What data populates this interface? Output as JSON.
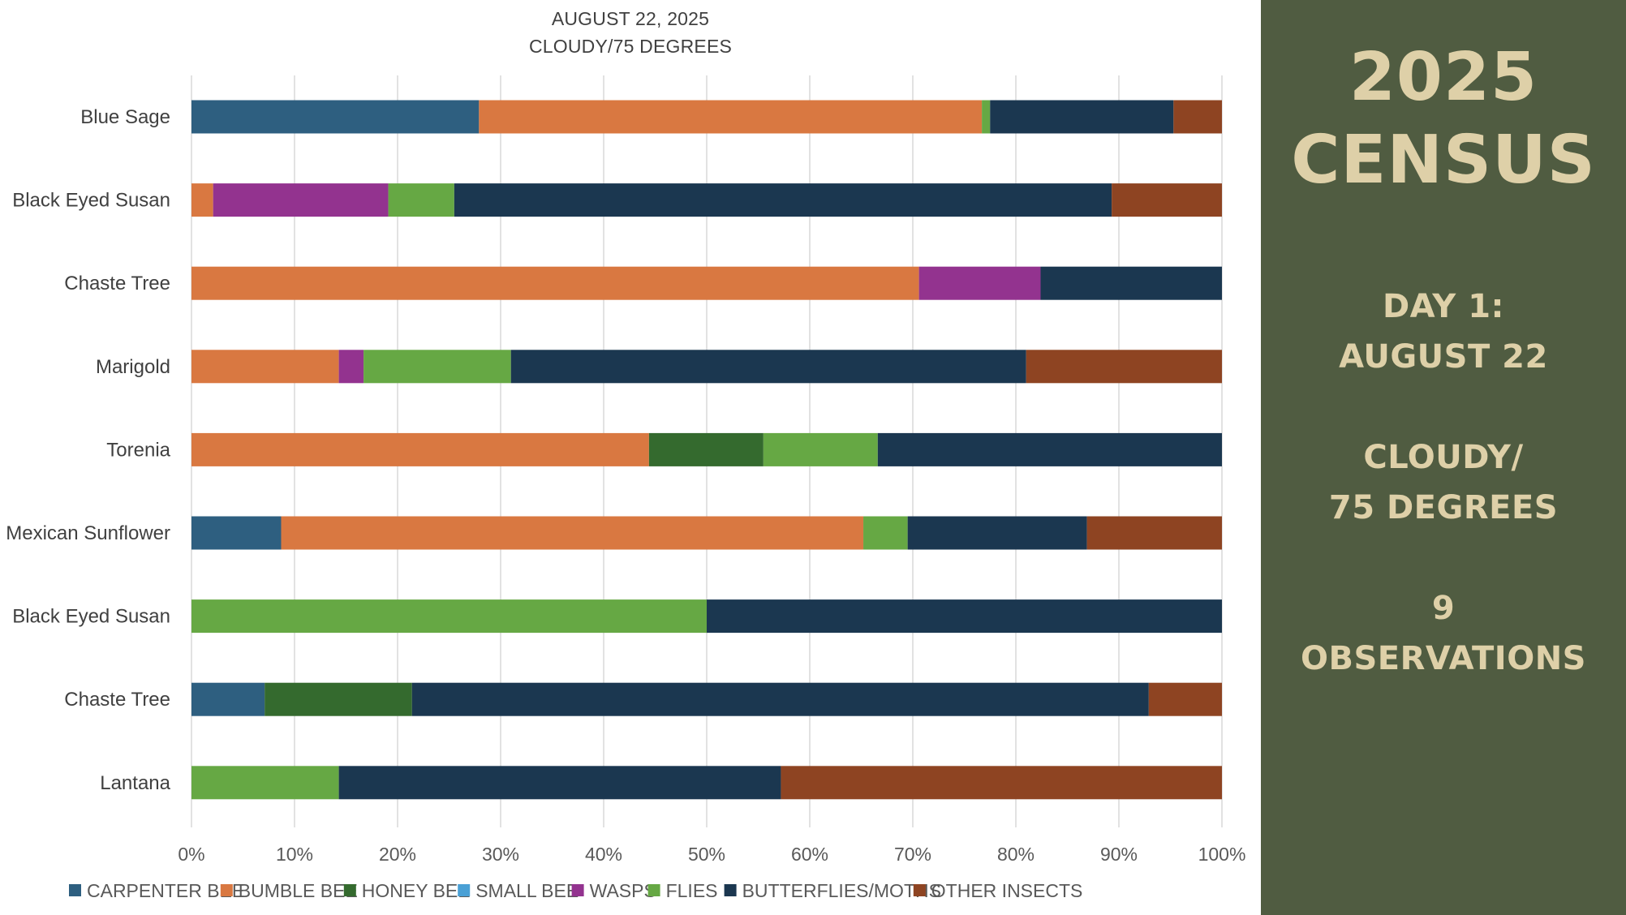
{
  "chart_data": {
    "type": "bar",
    "orientation": "horizontal",
    "stacked": "percent",
    "title_lines": [
      "AUGUST 22, 2025",
      "CLOUDY/75 DEGREES"
    ],
    "categories": [
      "Blue Sage",
      "Black Eyed Susan",
      "Chaste Tree",
      "Marigold",
      "Torenia",
      "Mexican Sunflower",
      "Black Eyed Susan",
      "Chaste Tree",
      "Lantana"
    ],
    "series": [
      {
        "name": "CARPENTER BEE",
        "color": "#2e5f80",
        "values": [
          27.9,
          0,
          0,
          0,
          0,
          8.7,
          0,
          7.1,
          0
        ]
      },
      {
        "name": "BUMBLE BEE",
        "color": "#d97841",
        "values": [
          48.8,
          2.1,
          70.6,
          14.3,
          44.4,
          56.5,
          0,
          0,
          0
        ]
      },
      {
        "name": "HONEY BEE",
        "color": "#346a2e",
        "values": [
          0,
          0,
          0,
          0,
          11.1,
          0,
          0,
          14.3,
          0
        ]
      },
      {
        "name": "SMALL BEE",
        "color": "#4aa0d5",
        "values": [
          0,
          0,
          0,
          0,
          0,
          0,
          0,
          0,
          0
        ]
      },
      {
        "name": "WASPS",
        "color": "#93338f",
        "values": [
          0,
          17.0,
          11.8,
          2.4,
          0,
          0,
          0,
          0,
          0
        ]
      },
      {
        "name": "FLIES",
        "color": "#66a844",
        "values": [
          0.8,
          6.4,
          0,
          14.3,
          11.1,
          4.3,
          50.0,
          0,
          14.3
        ]
      },
      {
        "name": "BUTTERFLIES/MOTHS",
        "color": "#1b3750",
        "values": [
          17.8,
          63.8,
          17.6,
          50.0,
          33.4,
          17.4,
          50.0,
          71.5,
          42.9
        ]
      },
      {
        "name": "OTHER INSECTS",
        "color": "#8e4422",
        "values": [
          4.7,
          10.7,
          0,
          19.0,
          0,
          13.1,
          0,
          7.1,
          42.8
        ]
      }
    ],
    "xlim": [
      0,
      100
    ],
    "xticks": [
      "0%",
      "10%",
      "20%",
      "30%",
      "40%",
      "50%",
      "60%",
      "70%",
      "80%",
      "90%",
      "100%"
    ],
    "grid": true,
    "legend_position": "bottom"
  },
  "panel": {
    "heading": [
      "2025",
      "CENSUS"
    ],
    "lines": [
      "DAY 1:",
      "AUGUST 22",
      "CLOUDY/",
      "75 DEGREES",
      "9",
      "OBSERVATIONS"
    ],
    "background": "#505c41",
    "text_color": "#ded0a8"
  }
}
